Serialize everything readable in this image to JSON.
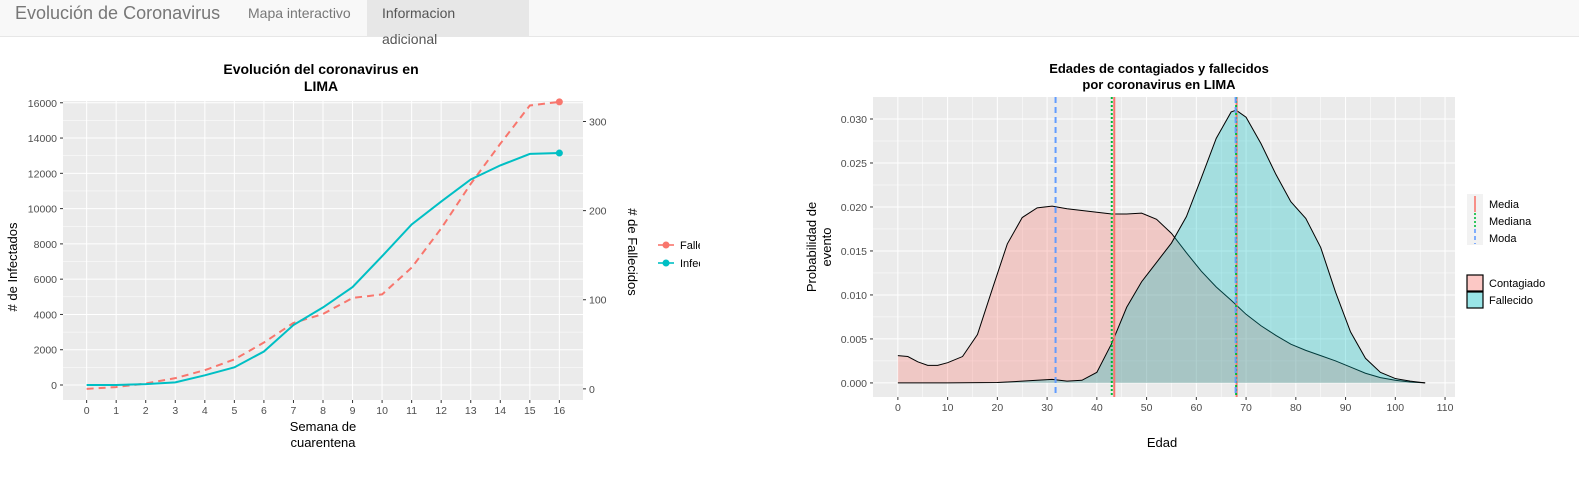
{
  "navbar": {
    "brand": "Evolución de Coronavirus",
    "tabs": [
      {
        "label": "Mapa interactivo",
        "active": false
      },
      {
        "label": "Informacion adicional",
        "active": true
      }
    ]
  },
  "colors": {
    "fallecidos": "#F8766D",
    "infectados": "#00BFC4",
    "media": "#F8766D",
    "mediana": "#00BA38",
    "moda": "#619CFF",
    "panel_bg": "#EBEBEB",
    "grid": "#ffffff"
  },
  "chart_data": [
    {
      "type": "line",
      "title_lines": [
        "Evolución del coronavirus en",
        "LIMA"
      ],
      "xlabel_lines": [
        "Semana de",
        "cuarentena"
      ],
      "ylabel": "# de Infectados",
      "y2label": "# de Fallecidos",
      "x": [
        0,
        1,
        2,
        3,
        4,
        5,
        6,
        7,
        8,
        9,
        10,
        11,
        12,
        13,
        14,
        15,
        16
      ],
      "xlim": [
        -0.8,
        16.8
      ],
      "ylim": [
        -850,
        16100
      ],
      "y2lim": [
        -12.5,
        323
      ],
      "yticks": [
        0,
        2000,
        4000,
        6000,
        8000,
        10000,
        12000,
        14000,
        16000
      ],
      "y2ticks": [
        0,
        100,
        200,
        300
      ],
      "series": [
        {
          "name": "Fallecidos",
          "axis": "y2",
          "dash": true,
          "color": "#F8766D",
          "values": [
            0,
            2,
            6,
            12,
            21,
            33,
            52,
            74,
            84,
            102,
            106,
            136,
            180,
            230,
            275,
            318,
            322
          ]
        },
        {
          "name": "Infectados",
          "axis": "y",
          "dash": false,
          "color": "#00BFC4",
          "values": [
            0,
            0,
            50,
            150,
            550,
            1000,
            1900,
            3400,
            4400,
            5550,
            7300,
            9100,
            10400,
            11650,
            12450,
            13100,
            13150
          ]
        }
      ],
      "legend": {
        "position": "right",
        "entries": [
          "Fallecidos",
          "Infectados"
        ]
      }
    },
    {
      "type": "area",
      "title_lines": [
        "Edades de contagiados y fallecidos",
        "por coronavirus en LIMA"
      ],
      "xlabel": "Edad",
      "ylabel_lines": [
        "Probabilidad de",
        "evento"
      ],
      "xlim": [
        -5,
        112
      ],
      "ylim": [
        -0.0016,
        0.0325
      ],
      "xticks": [
        0,
        10,
        20,
        30,
        40,
        50,
        60,
        70,
        80,
        90,
        100,
        110
      ],
      "yticks": [
        "0.000",
        "0.005",
        "0.010",
        "0.015",
        "0.020",
        "0.025",
        "0.030"
      ],
      "series": [
        {
          "name": "Contagiado",
          "fill": "#F8766D",
          "x": [
            0,
            2,
            4,
            6,
            8,
            10,
            13,
            16,
            19,
            22,
            25,
            28,
            31,
            34,
            37,
            40,
            43,
            46,
            49,
            52,
            55,
            58,
            61,
            64,
            67,
            70,
            73,
            76,
            79,
            82,
            85,
            88,
            91,
            94,
            97,
            100,
            103,
            106
          ],
          "values": [
            0.0031,
            0.003,
            0.0024,
            0.002,
            0.002,
            0.0023,
            0.003,
            0.0055,
            0.0107,
            0.0158,
            0.0188,
            0.0199,
            0.0201,
            0.0198,
            0.0196,
            0.0194,
            0.0192,
            0.0192,
            0.0193,
            0.0186,
            0.017,
            0.0148,
            0.0127,
            0.0109,
            0.0094,
            0.0078,
            0.0065,
            0.0054,
            0.0044,
            0.0037,
            0.0031,
            0.0025,
            0.0018,
            0.0011,
            0.0006,
            0.0003,
            0.0001,
            0.0
          ]
        },
        {
          "name": "Fallecido",
          "fill": "#00BFC4",
          "x": [
            0,
            10,
            20,
            25,
            28,
            31,
            34,
            37,
            40,
            43,
            46,
            49,
            52,
            55,
            58,
            61,
            64,
            67,
            68,
            70,
            73,
            76,
            79,
            82,
            85,
            88,
            91,
            94,
            97,
            100,
            103,
            106
          ],
          "values": [
            0,
            0,
            5e-05,
            0.0002,
            0.0003,
            0.0004,
            0.0002,
            0.0003,
            0.0012,
            0.0045,
            0.0086,
            0.0115,
            0.0137,
            0.0159,
            0.0189,
            0.0233,
            0.0278,
            0.0308,
            0.031,
            0.0302,
            0.0272,
            0.0237,
            0.0206,
            0.0187,
            0.0154,
            0.0103,
            0.0058,
            0.0028,
            0.0012,
            0.0005,
            0.0002,
            0.0
          ]
        }
      ],
      "vlines": [
        {
          "name": "Media",
          "style": "solid",
          "color": "#F8766D",
          "x": [
            43.5,
            68.1
          ]
        },
        {
          "name": "Mediana",
          "style": "dotted",
          "color": "#00BA38",
          "x": [
            43.0,
            68.0
          ]
        },
        {
          "name": "Moda",
          "style": "dashed",
          "color": "#619CFF",
          "x": [
            31.7,
            67.9
          ]
        }
      ],
      "legend": {
        "position": "right",
        "lines": [
          "Media",
          "Mediana",
          "Moda"
        ],
        "fills": [
          "Contagiado",
          "Fallecido"
        ]
      }
    }
  ]
}
